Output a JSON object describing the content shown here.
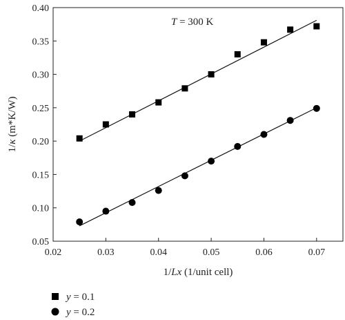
{
  "chart_data": {
    "type": "scatter",
    "title": "",
    "annotation": {
      "var": "T",
      "rest": " = 300 K"
    },
    "xlabel": {
      "pre": "1/",
      "italic": "Lx",
      "post": " (1/unit cell)"
    },
    "ylabel": {
      "pre": "1/",
      "italic": "κ",
      "post": " (m*K/W)"
    },
    "xlim": [
      0.02,
      0.075
    ],
    "ylim": [
      0.05,
      0.4
    ],
    "xticks": [
      0.02,
      0.03,
      0.04,
      0.05,
      0.06,
      0.07
    ],
    "yticks": [
      0.05,
      0.1,
      0.15,
      0.2,
      0.25,
      0.3,
      0.35,
      0.4
    ],
    "xtick_labels": [
      "0.02",
      "0.03",
      "0.04",
      "0.05",
      "0.06",
      "0.07"
    ],
    "ytick_labels": [
      "0.05",
      "0.10",
      "0.15",
      "0.20",
      "0.25",
      "0.30",
      "0.35",
      "0.40"
    ],
    "grid": false,
    "legend_position": "below-left",
    "series": [
      {
        "name_var": "y",
        "name_rest": " = 0.1",
        "marker": "square",
        "color": "#000000",
        "x": [
          0.025,
          0.03,
          0.035,
          0.04,
          0.045,
          0.05,
          0.055,
          0.06,
          0.065,
          0.07
        ],
        "y": [
          0.204,
          0.225,
          0.24,
          0.258,
          0.279,
          0.3,
          0.33,
          0.348,
          0.367,
          0.372
        ],
        "fit": {
          "x": [
            0.025,
            0.07
          ],
          "y": [
            0.2,
            0.381
          ]
        }
      },
      {
        "name_var": "y",
        "name_rest": " = 0.2",
        "marker": "circle",
        "color": "#000000",
        "x": [
          0.025,
          0.03,
          0.035,
          0.04,
          0.045,
          0.05,
          0.055,
          0.06,
          0.065,
          0.07
        ],
        "y": [
          0.079,
          0.095,
          0.108,
          0.126,
          0.148,
          0.17,
          0.192,
          0.21,
          0.231,
          0.249
        ],
        "fit": {
          "x": [
            0.025,
            0.07
          ],
          "y": [
            0.073,
            0.25
          ]
        }
      }
    ]
  }
}
